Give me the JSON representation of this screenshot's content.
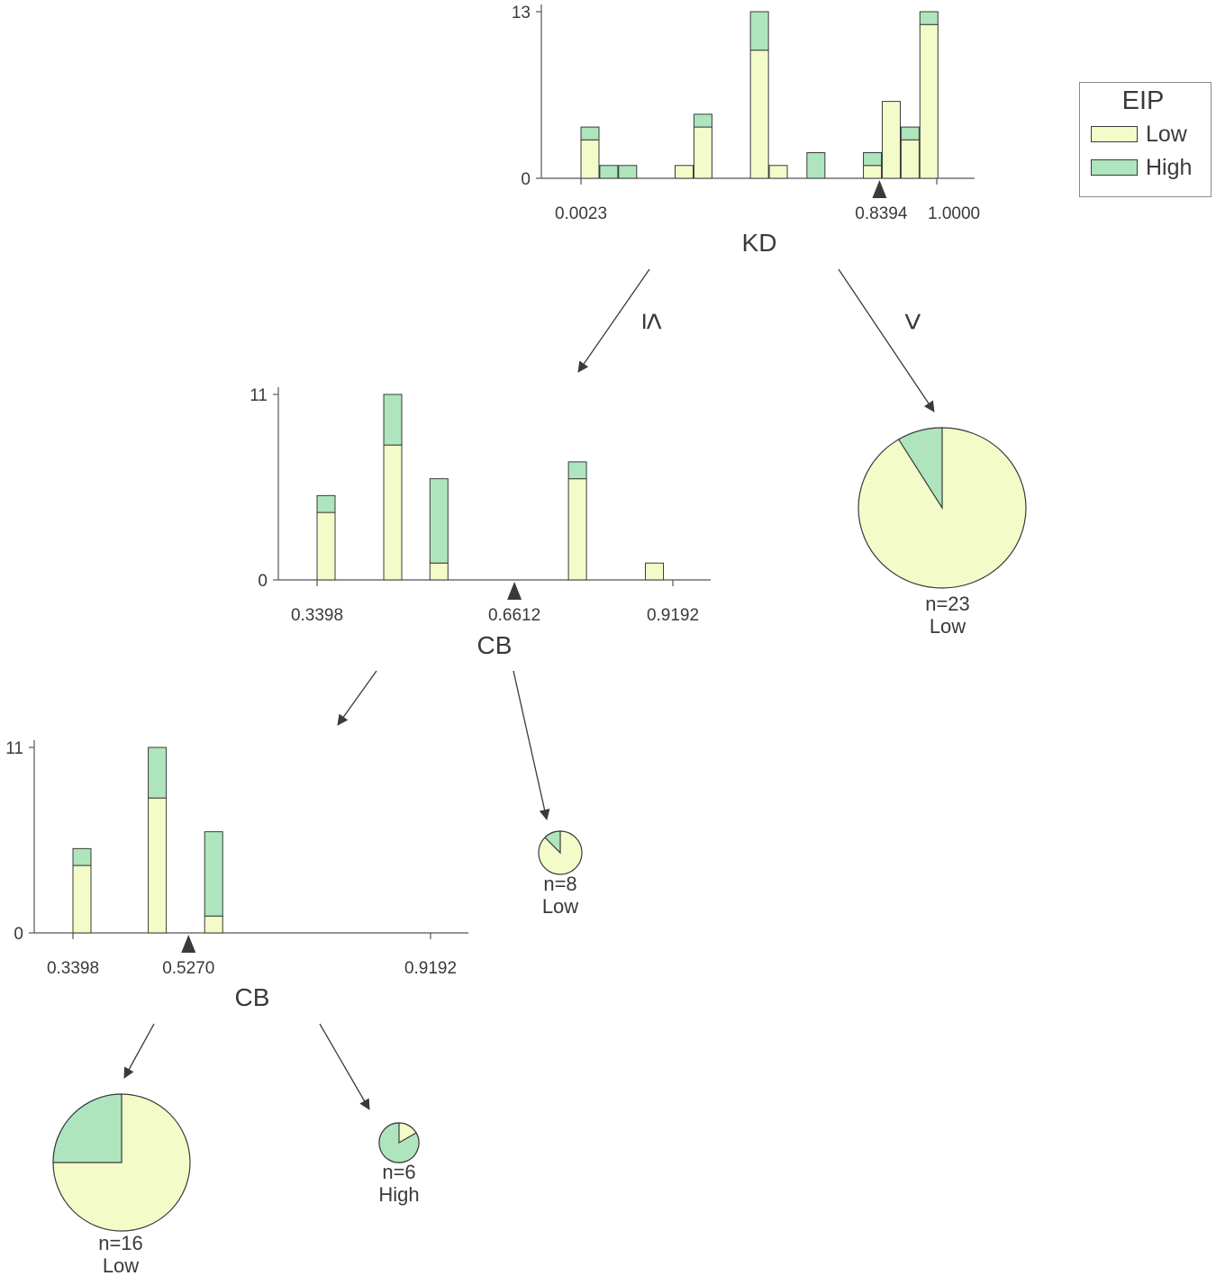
{
  "colors": {
    "Low": "#f3fcc9",
    "High": "#aee5bd",
    "stroke": "#3a3a3a",
    "axis": "#555555"
  },
  "legend": {
    "title": "EIP",
    "items": [
      {
        "label": "Low",
        "color": "#f3fcc9"
      },
      {
        "label": "High",
        "color": "#aee5bd"
      }
    ]
  },
  "chart_data": [
    {
      "type": "bar",
      "id": "kd-node",
      "variable": "KD",
      "stacking": "stacked",
      "ylim": [
        0,
        13
      ],
      "yticks": [
        "0",
        "13"
      ],
      "x_range": [
        0.0023,
        1.0
      ],
      "xticks": [
        "0.0023",
        "0.8394",
        "1.0000"
      ],
      "split": 0.8394,
      "bars": [
        {
          "x": 0.0023,
          "Low": 3,
          "High": 1
        },
        {
          "x": 0.0551,
          "Low": 0,
          "High": 1
        },
        {
          "x": 0.1079,
          "Low": 0,
          "High": 1
        },
        {
          "x": 0.2663,
          "Low": 1,
          "High": 0
        },
        {
          "x": 0.3191,
          "Low": 4,
          "High": 1
        },
        {
          "x": 0.4775,
          "Low": 10,
          "High": 3
        },
        {
          "x": 0.5303,
          "Low": 1,
          "High": 0
        },
        {
          "x": 0.6359,
          "Low": 0,
          "High": 2
        },
        {
          "x": 0.7943,
          "Low": 1,
          "High": 1
        },
        {
          "x": 0.8471,
          "Low": 6,
          "High": 0
        },
        {
          "x": 0.8999,
          "Low": 3,
          "High": 1
        },
        {
          "x": 0.9527,
          "Low": 12,
          "High": 1
        }
      ]
    },
    {
      "type": "bar",
      "id": "cb-node-1",
      "variable": "CB",
      "stacking": "stacked",
      "ylim": [
        0,
        11
      ],
      "yticks": [
        "0",
        "11"
      ],
      "x_range": [
        0.3398,
        0.9192
      ],
      "xticks": [
        "0.3398",
        "0.6612",
        "0.9192"
      ],
      "split": 0.6612,
      "bars": [
        {
          "x": 0.3398,
          "Low": 4,
          "High": 1
        },
        {
          "x": 0.4484,
          "Low": 8,
          "High": 3
        },
        {
          "x": 0.5236,
          "Low": 1,
          "High": 5
        },
        {
          "x": 0.7492,
          "Low": 6,
          "High": 1
        },
        {
          "x": 0.8745,
          "Low": 1,
          "High": 0
        }
      ]
    },
    {
      "type": "bar",
      "id": "cb-node-2",
      "variable": "CB",
      "stacking": "stacked",
      "ylim": [
        0,
        11
      ],
      "yticks": [
        "0",
        "11"
      ],
      "x_range": [
        0.3398,
        0.9192
      ],
      "xticks": [
        "0.3398",
        "0.5270",
        "0.9192"
      ],
      "split": 0.527,
      "bars": [
        {
          "x": 0.3398,
          "Low": 4,
          "High": 1
        },
        {
          "x": 0.4618,
          "Low": 8,
          "High": 3
        },
        {
          "x": 0.5532,
          "Low": 1,
          "High": 5
        }
      ]
    },
    {
      "type": "pie",
      "id": "leaf-kd-gt",
      "n_label": "n=23",
      "class_label": "Low",
      "slices": [
        {
          "label": "Low",
          "value": 21
        },
        {
          "label": "High",
          "value": 2
        }
      ]
    },
    {
      "type": "pie",
      "id": "leaf-cb1-gt",
      "n_label": "n=8",
      "class_label": "Low",
      "slices": [
        {
          "label": "Low",
          "value": 7
        },
        {
          "label": "High",
          "value": 1
        }
      ]
    },
    {
      "type": "pie",
      "id": "leaf-cb2-le",
      "n_label": "n=16",
      "class_label": "Low",
      "slices": [
        {
          "label": "Low",
          "value": 12
        },
        {
          "label": "High",
          "value": 4
        }
      ]
    },
    {
      "type": "pie",
      "id": "leaf-cb2-gt",
      "n_label": "n=6",
      "class_label": "High",
      "slices": [
        {
          "label": "Low",
          "value": 1
        },
        {
          "label": "High",
          "value": 5
        }
      ]
    }
  ],
  "edge_labels": {
    "left": "≤",
    "right": ">"
  }
}
